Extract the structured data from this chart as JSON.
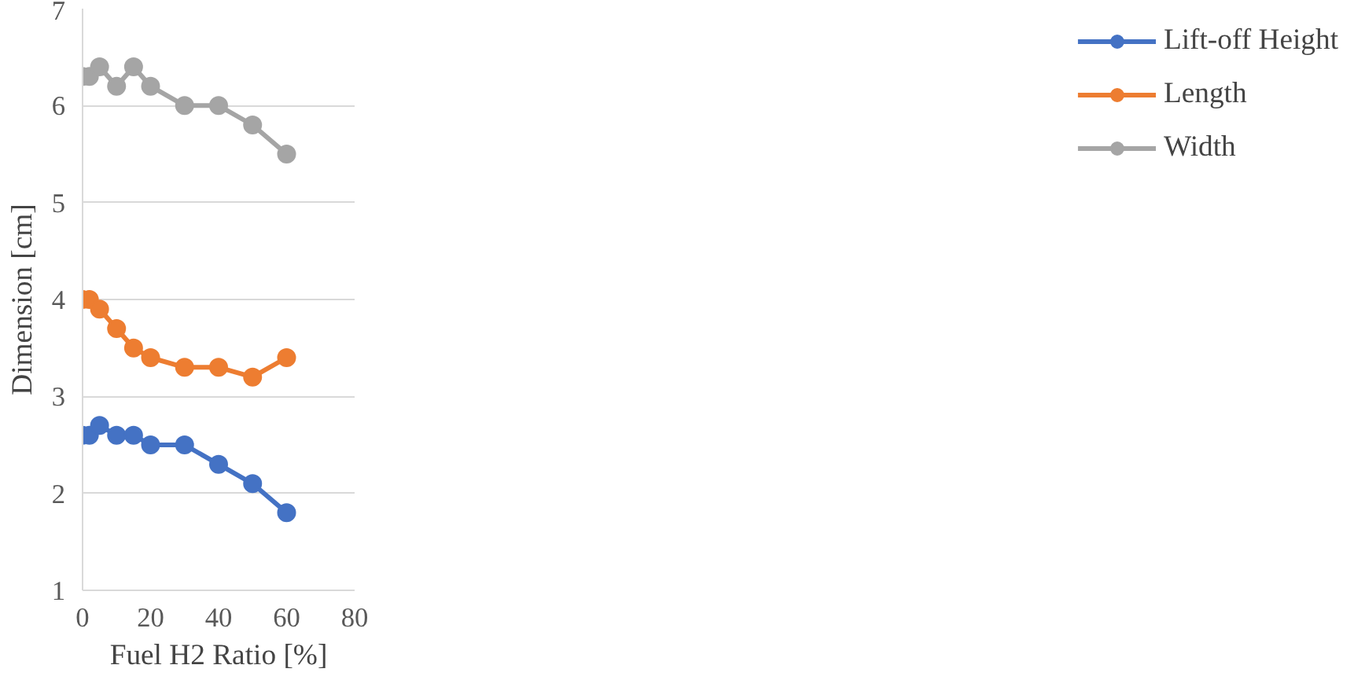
{
  "chart_data": {
    "type": "line",
    "xlabel": "Fuel H2 Ratio [%]",
    "ylabel": "Dimension [cm]",
    "x": [
      0,
      2,
      5,
      10,
      15,
      20,
      30,
      40,
      50,
      60
    ],
    "series": [
      {
        "name": "Lift-off Height",
        "color": "#4472c4",
        "values": [
          2.6,
          2.6,
          2.7,
          2.6,
          2.6,
          2.5,
          2.5,
          2.3,
          2.1,
          1.8
        ]
      },
      {
        "name": "Length",
        "color": "#ed7d31",
        "values": [
          4.0,
          4.0,
          3.9,
          3.7,
          3.5,
          3.4,
          3.3,
          3.3,
          3.2,
          3.4
        ]
      },
      {
        "name": "Width",
        "color": "#a5a5a5",
        "values": [
          6.3,
          6.3,
          6.4,
          6.2,
          6.4,
          6.2,
          6.0,
          6.0,
          5.8,
          5.5
        ]
      }
    ],
    "xlim": [
      0,
      80
    ],
    "xticks": [
      0,
      20,
      40,
      60,
      80
    ],
    "ylim": [
      1,
      7
    ],
    "yticks": [
      1,
      2,
      3,
      4,
      5,
      6,
      7
    ],
    "grid": "y",
    "legend": "right",
    "marker": "circle",
    "line_style": "solid"
  }
}
